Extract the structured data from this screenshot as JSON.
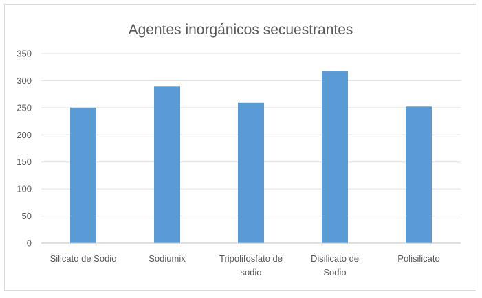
{
  "chart_data": {
    "type": "bar",
    "title": "Agentes inorgánicos secuestrantes",
    "xlabel": "",
    "ylabel": "",
    "categories": [
      [
        "Silicato de Sodio"
      ],
      [
        "Sodiumix"
      ],
      [
        "Tripolifosfato de",
        "sodio"
      ],
      [
        "Disilicato de",
        "Sodio"
      ],
      [
        "Polisilicato"
      ]
    ],
    "values": [
      250,
      290,
      259,
      317,
      252
    ],
    "ylim": [
      0,
      350
    ],
    "yticks": [
      0,
      50,
      100,
      150,
      200,
      250,
      300,
      350
    ],
    "grid": true,
    "legend": "none",
    "bar_color": "#5b9bd5",
    "grid_color": "#e0e0e0",
    "axis_color": "#bfbfbf"
  }
}
